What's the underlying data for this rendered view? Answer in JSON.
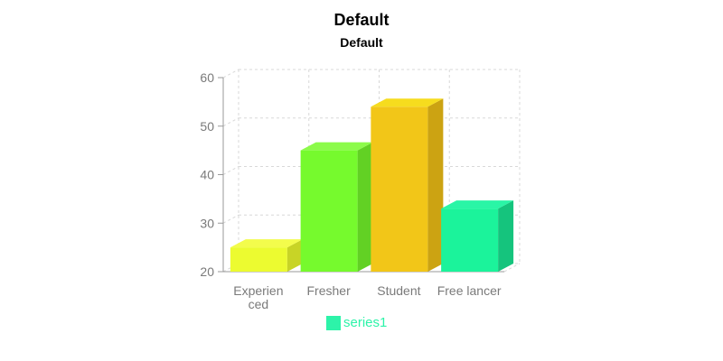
{
  "chart_data": {
    "type": "bar",
    "title": "Default",
    "subtitle": "Default",
    "categories": [
      "Experienced",
      "Fresher",
      "Student",
      "Free lancer"
    ],
    "category_lines": [
      [
        "Experien",
        "ced"
      ],
      [
        "Fresher"
      ],
      [
        "Student"
      ],
      [
        "Free lancer"
      ]
    ],
    "series": [
      {
        "name": "series1",
        "values": [
          25,
          45,
          54,
          33
        ]
      }
    ],
    "bar_colors": [
      "#ecfb30",
      "#76fa2d",
      "#f2c618",
      "#1bf39b"
    ],
    "bar_side_colors": [
      "#c8d426",
      "#62d124",
      "#cca312",
      "#15c47d"
    ],
    "bar_top_colors": [
      "#f3fc4c",
      "#8cfb4a",
      "#f6dc1e",
      "#2af5a6"
    ],
    "ylim": [
      20,
      60
    ],
    "yticks": [
      20,
      30,
      40,
      50,
      60
    ],
    "grid": true,
    "legend_position": "bottom",
    "legend_color": "#2df3a9",
    "style": "3d"
  }
}
